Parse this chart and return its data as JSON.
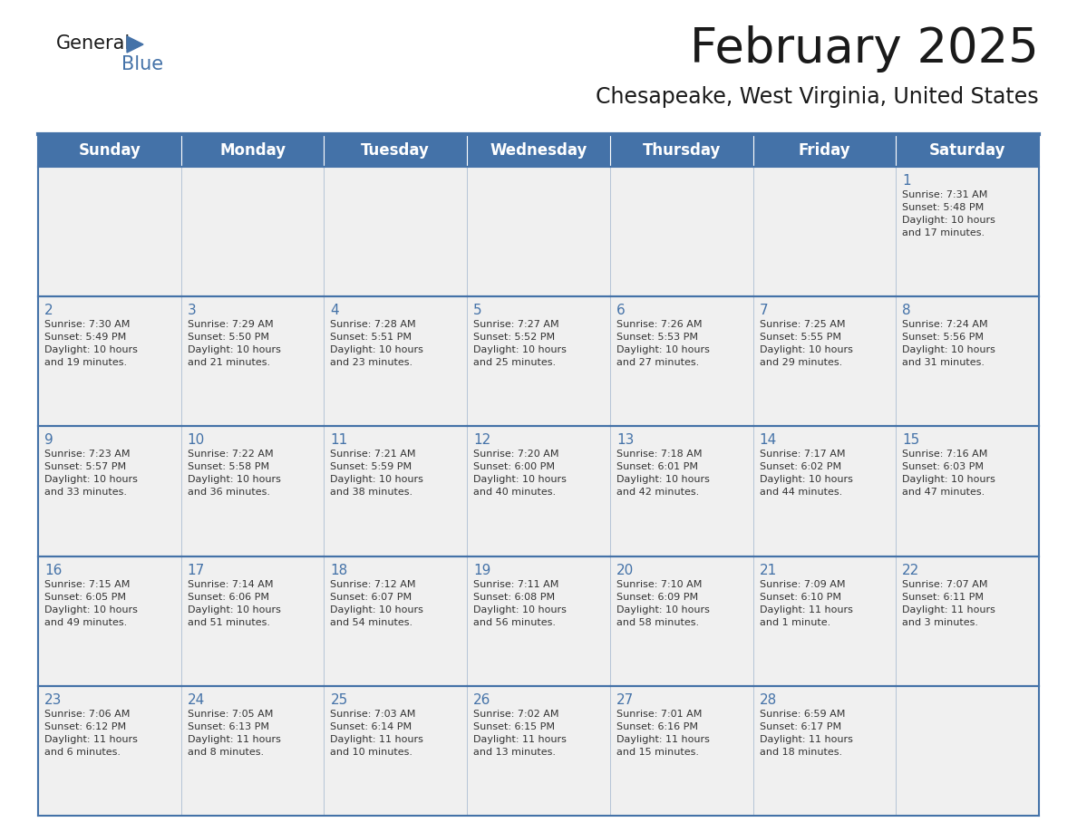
{
  "title": "February 2025",
  "subtitle": "Chesapeake, West Virginia, United States",
  "header_bg_color": "#4472a8",
  "header_text_color": "#ffffff",
  "cell_bg_color": "#f0f0f0",
  "day_number_color": "#4472a8",
  "text_color": "#333333",
  "border_color": "#4472a8",
  "days_of_week": [
    "Sunday",
    "Monday",
    "Tuesday",
    "Wednesday",
    "Thursday",
    "Friday",
    "Saturday"
  ],
  "weeks": [
    [
      {
        "day": "",
        "sunrise": "",
        "sunset": "",
        "daylight": ""
      },
      {
        "day": "",
        "sunrise": "",
        "sunset": "",
        "daylight": ""
      },
      {
        "day": "",
        "sunrise": "",
        "sunset": "",
        "daylight": ""
      },
      {
        "day": "",
        "sunrise": "",
        "sunset": "",
        "daylight": ""
      },
      {
        "day": "",
        "sunrise": "",
        "sunset": "",
        "daylight": ""
      },
      {
        "day": "",
        "sunrise": "",
        "sunset": "",
        "daylight": ""
      },
      {
        "day": "1",
        "sunrise": "Sunrise: 7:31 AM",
        "sunset": "Sunset: 5:48 PM",
        "daylight": "Daylight: 10 hours\nand 17 minutes."
      }
    ],
    [
      {
        "day": "2",
        "sunrise": "Sunrise: 7:30 AM",
        "sunset": "Sunset: 5:49 PM",
        "daylight": "Daylight: 10 hours\nand 19 minutes."
      },
      {
        "day": "3",
        "sunrise": "Sunrise: 7:29 AM",
        "sunset": "Sunset: 5:50 PM",
        "daylight": "Daylight: 10 hours\nand 21 minutes."
      },
      {
        "day": "4",
        "sunrise": "Sunrise: 7:28 AM",
        "sunset": "Sunset: 5:51 PM",
        "daylight": "Daylight: 10 hours\nand 23 minutes."
      },
      {
        "day": "5",
        "sunrise": "Sunrise: 7:27 AM",
        "sunset": "Sunset: 5:52 PM",
        "daylight": "Daylight: 10 hours\nand 25 minutes."
      },
      {
        "day": "6",
        "sunrise": "Sunrise: 7:26 AM",
        "sunset": "Sunset: 5:53 PM",
        "daylight": "Daylight: 10 hours\nand 27 minutes."
      },
      {
        "day": "7",
        "sunrise": "Sunrise: 7:25 AM",
        "sunset": "Sunset: 5:55 PM",
        "daylight": "Daylight: 10 hours\nand 29 minutes."
      },
      {
        "day": "8",
        "sunrise": "Sunrise: 7:24 AM",
        "sunset": "Sunset: 5:56 PM",
        "daylight": "Daylight: 10 hours\nand 31 minutes."
      }
    ],
    [
      {
        "day": "9",
        "sunrise": "Sunrise: 7:23 AM",
        "sunset": "Sunset: 5:57 PM",
        "daylight": "Daylight: 10 hours\nand 33 minutes."
      },
      {
        "day": "10",
        "sunrise": "Sunrise: 7:22 AM",
        "sunset": "Sunset: 5:58 PM",
        "daylight": "Daylight: 10 hours\nand 36 minutes."
      },
      {
        "day": "11",
        "sunrise": "Sunrise: 7:21 AM",
        "sunset": "Sunset: 5:59 PM",
        "daylight": "Daylight: 10 hours\nand 38 minutes."
      },
      {
        "day": "12",
        "sunrise": "Sunrise: 7:20 AM",
        "sunset": "Sunset: 6:00 PM",
        "daylight": "Daylight: 10 hours\nand 40 minutes."
      },
      {
        "day": "13",
        "sunrise": "Sunrise: 7:18 AM",
        "sunset": "Sunset: 6:01 PM",
        "daylight": "Daylight: 10 hours\nand 42 minutes."
      },
      {
        "day": "14",
        "sunrise": "Sunrise: 7:17 AM",
        "sunset": "Sunset: 6:02 PM",
        "daylight": "Daylight: 10 hours\nand 44 minutes."
      },
      {
        "day": "15",
        "sunrise": "Sunrise: 7:16 AM",
        "sunset": "Sunset: 6:03 PM",
        "daylight": "Daylight: 10 hours\nand 47 minutes."
      }
    ],
    [
      {
        "day": "16",
        "sunrise": "Sunrise: 7:15 AM",
        "sunset": "Sunset: 6:05 PM",
        "daylight": "Daylight: 10 hours\nand 49 minutes."
      },
      {
        "day": "17",
        "sunrise": "Sunrise: 7:14 AM",
        "sunset": "Sunset: 6:06 PM",
        "daylight": "Daylight: 10 hours\nand 51 minutes."
      },
      {
        "day": "18",
        "sunrise": "Sunrise: 7:12 AM",
        "sunset": "Sunset: 6:07 PM",
        "daylight": "Daylight: 10 hours\nand 54 minutes."
      },
      {
        "day": "19",
        "sunrise": "Sunrise: 7:11 AM",
        "sunset": "Sunset: 6:08 PM",
        "daylight": "Daylight: 10 hours\nand 56 minutes."
      },
      {
        "day": "20",
        "sunrise": "Sunrise: 7:10 AM",
        "sunset": "Sunset: 6:09 PM",
        "daylight": "Daylight: 10 hours\nand 58 minutes."
      },
      {
        "day": "21",
        "sunrise": "Sunrise: 7:09 AM",
        "sunset": "Sunset: 6:10 PM",
        "daylight": "Daylight: 11 hours\nand 1 minute."
      },
      {
        "day": "22",
        "sunrise": "Sunrise: 7:07 AM",
        "sunset": "Sunset: 6:11 PM",
        "daylight": "Daylight: 11 hours\nand 3 minutes."
      }
    ],
    [
      {
        "day": "23",
        "sunrise": "Sunrise: 7:06 AM",
        "sunset": "Sunset: 6:12 PM",
        "daylight": "Daylight: 11 hours\nand 6 minutes."
      },
      {
        "day": "24",
        "sunrise": "Sunrise: 7:05 AM",
        "sunset": "Sunset: 6:13 PM",
        "daylight": "Daylight: 11 hours\nand 8 minutes."
      },
      {
        "day": "25",
        "sunrise": "Sunrise: 7:03 AM",
        "sunset": "Sunset: 6:14 PM",
        "daylight": "Daylight: 11 hours\nand 10 minutes."
      },
      {
        "day": "26",
        "sunrise": "Sunrise: 7:02 AM",
        "sunset": "Sunset: 6:15 PM",
        "daylight": "Daylight: 11 hours\nand 13 minutes."
      },
      {
        "day": "27",
        "sunrise": "Sunrise: 7:01 AM",
        "sunset": "Sunset: 6:16 PM",
        "daylight": "Daylight: 11 hours\nand 15 minutes."
      },
      {
        "day": "28",
        "sunrise": "Sunrise: 6:59 AM",
        "sunset": "Sunset: 6:17 PM",
        "daylight": "Daylight: 11 hours\nand 18 minutes."
      },
      {
        "day": "",
        "sunrise": "",
        "sunset": "",
        "daylight": ""
      }
    ]
  ],
  "logo_triangle_color": "#4472a8",
  "title_fontsize": 38,
  "subtitle_fontsize": 17,
  "header_fontsize": 12,
  "day_number_fontsize": 11,
  "cell_text_fontsize": 8
}
